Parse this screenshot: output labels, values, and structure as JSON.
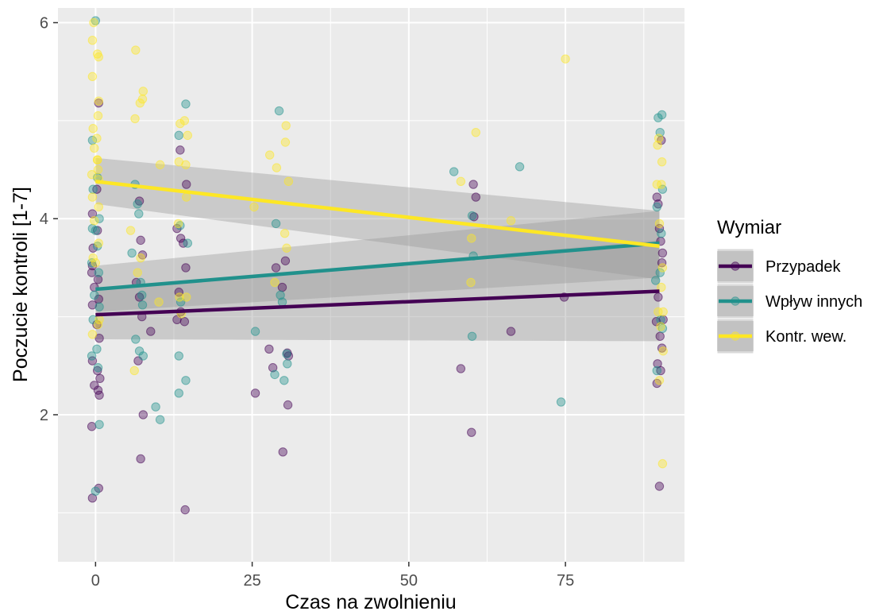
{
  "chart_data": {
    "type": "scatter",
    "xlabel": "Czas na zwolnieniu",
    "ylabel": "Poczucie kontroli [1-7]",
    "xlim": [
      -6,
      94
    ],
    "ylim": [
      0.5,
      6.15
    ],
    "x_ticks": [
      0,
      25,
      50,
      75
    ],
    "x_tick_labels": [
      "0",
      "25",
      "50",
      "75"
    ],
    "y_ticks": [
      2,
      4,
      6
    ],
    "y_tick_labels": [
      "2",
      "4",
      "6"
    ],
    "grid": true,
    "background": "#ebebeb",
    "legend": {
      "title": "Wymiar",
      "position": "right"
    },
    "series": [
      {
        "name": "Przypadek",
        "color": "#440154",
        "trend": {
          "x": [
            0,
            90
          ],
          "y": [
            3.02,
            3.26
          ]
        },
        "ci_lower": [
          2.77,
          2.75
        ],
        "ci_upper": [
          3.28,
          3.78
        ],
        "points": [
          [
            -0.5,
            4.05
          ],
          [
            0.3,
            3.88
          ],
          [
            -0.6,
            3.45
          ],
          [
            0.4,
            3.38
          ],
          [
            -0.2,
            3.3
          ],
          [
            0.5,
            3.18
          ],
          [
            -0.5,
            3.12
          ],
          [
            0.2,
            2.92
          ],
          [
            0.6,
            2.78
          ],
          [
            -0.5,
            2.55
          ],
          [
            0.3,
            2.45
          ],
          [
            -0.2,
            2.3
          ],
          [
            0.4,
            2.25
          ],
          [
            -0.6,
            1.88
          ],
          [
            0.2,
            4.3
          ],
          [
            -0.4,
            3.7
          ],
          [
            0.7,
            2.37
          ],
          [
            0.6,
            2.2
          ],
          [
            0.5,
            1.25
          ],
          [
            -0.5,
            1.15
          ],
          [
            0.5,
            5.18
          ],
          [
            -0.5,
            3.52
          ],
          [
            6.5,
            3.35
          ],
          [
            7.0,
            3.2
          ],
          [
            7.5,
            3.63
          ],
          [
            7.2,
            3.78
          ],
          [
            7.0,
            4.18
          ],
          [
            7.4,
            3.0
          ],
          [
            6.8,
            2.55
          ],
          [
            7.6,
            2.0
          ],
          [
            7.2,
            1.55
          ],
          [
            8.8,
            2.85
          ],
          [
            13.0,
            3.9
          ],
          [
            13.6,
            3.8
          ],
          [
            14.0,
            3.75
          ],
          [
            14.4,
            3.5
          ],
          [
            13.3,
            3.25
          ],
          [
            13.6,
            3.05
          ],
          [
            13.0,
            2.97
          ],
          [
            14.2,
            2.95
          ],
          [
            14.5,
            4.35
          ],
          [
            14.3,
            1.03
          ],
          [
            13.5,
            4.7
          ],
          [
            25.5,
            2.22
          ],
          [
            27.7,
            2.67
          ],
          [
            28.3,
            2.48
          ],
          [
            28.8,
            3.5
          ],
          [
            29.8,
            3.3
          ],
          [
            30.3,
            3.57
          ],
          [
            30.6,
            2.63
          ],
          [
            30.7,
            2.1
          ],
          [
            29.9,
            1.62
          ],
          [
            30.8,
            2.6
          ],
          [
            58.3,
            2.47
          ],
          [
            60.0,
            1.82
          ],
          [
            60.3,
            4.35
          ],
          [
            60.4,
            4.02
          ],
          [
            60.7,
            4.22
          ],
          [
            66.3,
            2.85
          ],
          [
            74.8,
            3.2
          ],
          [
            89.6,
            4.22
          ],
          [
            89.8,
            4.15
          ],
          [
            90.0,
            3.9
          ],
          [
            90.2,
            3.77
          ],
          [
            90.5,
            3.65
          ],
          [
            89.8,
            3.2
          ],
          [
            89.5,
            2.95
          ],
          [
            90.1,
            2.8
          ],
          [
            90.4,
            2.68
          ],
          [
            89.7,
            2.52
          ],
          [
            90.2,
            2.45
          ],
          [
            89.6,
            2.32
          ],
          [
            90.3,
            4.8
          ],
          [
            90.4,
            3.55
          ],
          [
            90.0,
            1.27
          ],
          [
            90.6,
            2.97
          ]
        ]
      },
      {
        "name": "Wpływ innych",
        "color": "#21918c",
        "trend": {
          "x": [
            0,
            90
          ],
          "y": [
            3.28,
            3.75
          ]
        },
        "ci_lower": [
          3.05,
          3.4
        ],
        "ci_upper": [
          3.52,
          4.08
        ],
        "points": [
          [
            0.0,
            6.02
          ],
          [
            -0.5,
            4.8
          ],
          [
            0.3,
            4.42
          ],
          [
            -0.4,
            4.3
          ],
          [
            0.6,
            4.0
          ],
          [
            -0.5,
            3.9
          ],
          [
            0.3,
            3.72
          ],
          [
            -0.6,
            3.55
          ],
          [
            0.5,
            3.45
          ],
          [
            -0.2,
            3.22
          ],
          [
            0.6,
            3.1
          ],
          [
            -0.4,
            2.97
          ],
          [
            0.2,
            2.67
          ],
          [
            -0.6,
            2.6
          ],
          [
            0.4,
            2.48
          ],
          [
            0.6,
            1.9
          ],
          [
            0.0,
            1.22
          ],
          [
            0.0,
            3.88
          ],
          [
            5.8,
            3.65
          ],
          [
            6.3,
            4.35
          ],
          [
            6.7,
            4.15
          ],
          [
            6.9,
            4.05
          ],
          [
            7.2,
            3.35
          ],
          [
            7.4,
            3.22
          ],
          [
            7.5,
            3.12
          ],
          [
            6.4,
            2.77
          ],
          [
            7.0,
            2.65
          ],
          [
            7.6,
            2.6
          ],
          [
            9.6,
            2.08
          ],
          [
            10.3,
            1.95
          ],
          [
            13.3,
            4.85
          ],
          [
            14.4,
            5.17
          ],
          [
            13.5,
            3.93
          ],
          [
            14.7,
            3.75
          ],
          [
            13.6,
            3.15
          ],
          [
            13.3,
            2.6
          ],
          [
            13.3,
            2.22
          ],
          [
            14.4,
            2.35
          ],
          [
            25.5,
            2.85
          ],
          [
            29.3,
            5.1
          ],
          [
            28.8,
            3.95
          ],
          [
            29.5,
            3.22
          ],
          [
            30.6,
            2.52
          ],
          [
            30.1,
            2.35
          ],
          [
            28.6,
            2.41
          ],
          [
            29.8,
            3.15
          ],
          [
            30.5,
            2.62
          ],
          [
            57.2,
            4.48
          ],
          [
            60.1,
            4.03
          ],
          [
            60.3,
            3.62
          ],
          [
            60.1,
            2.8
          ],
          [
            67.7,
            4.53
          ],
          [
            74.3,
            2.13
          ],
          [
            89.8,
            5.03
          ],
          [
            90.4,
            5.06
          ],
          [
            90.1,
            4.88
          ],
          [
            89.6,
            4.12
          ],
          [
            90.3,
            3.85
          ],
          [
            90.1,
            3.45
          ],
          [
            89.4,
            3.37
          ],
          [
            90.5,
            2.88
          ],
          [
            89.6,
            2.45
          ],
          [
            90.2,
            2.97
          ],
          [
            90.5,
            4.3
          ]
        ]
      },
      {
        "name": "Kontr. wew.",
        "color": "#fde725",
        "trend": {
          "x": [
            0,
            90
          ],
          "y": [
            4.38,
            3.72
          ]
        },
        "ci_lower": [
          4.15,
          3.38
        ],
        "ci_upper": [
          4.62,
          4.08
        ],
        "points": [
          [
            -0.3,
            6.0
          ],
          [
            -0.5,
            5.82
          ],
          [
            0.3,
            5.68
          ],
          [
            0.5,
            5.65
          ],
          [
            -0.5,
            5.45
          ],
          [
            0.5,
            5.2
          ],
          [
            0.4,
            5.05
          ],
          [
            -0.4,
            4.92
          ],
          [
            0.2,
            4.82
          ],
          [
            -0.2,
            4.72
          ],
          [
            0.3,
            4.6
          ],
          [
            0.4,
            4.5
          ],
          [
            -0.6,
            4.45
          ],
          [
            0.5,
            4.4
          ],
          [
            -0.5,
            4.22
          ],
          [
            0.5,
            4.12
          ],
          [
            -0.2,
            3.98
          ],
          [
            0.5,
            3.75
          ],
          [
            -0.4,
            3.6
          ],
          [
            0.0,
            3.55
          ],
          [
            0.6,
            2.97
          ],
          [
            -0.5,
            2.82
          ],
          [
            0.4,
            2.92
          ],
          [
            0.3,
            4.6
          ],
          [
            6.4,
            5.72
          ],
          [
            6.3,
            5.02
          ],
          [
            7.1,
            5.18
          ],
          [
            7.6,
            5.3
          ],
          [
            7.5,
            5.22
          ],
          [
            6.2,
            2.45
          ],
          [
            6.7,
            3.45
          ],
          [
            7.2,
            3.6
          ],
          [
            5.6,
            3.88
          ],
          [
            10.3,
            4.55
          ],
          [
            10.1,
            3.15
          ],
          [
            13.5,
            4.97
          ],
          [
            14.2,
            5.0
          ],
          [
            14.7,
            4.85
          ],
          [
            13.3,
            4.58
          ],
          [
            14.4,
            4.55
          ],
          [
            13.2,
            3.95
          ],
          [
            14.5,
            4.22
          ],
          [
            13.7,
            3.03
          ],
          [
            14.5,
            3.2
          ],
          [
            13.4,
            3.2
          ],
          [
            25.3,
            4.12
          ],
          [
            27.8,
            4.65
          ],
          [
            28.9,
            4.52
          ],
          [
            30.2,
            3.85
          ],
          [
            30.4,
            4.95
          ],
          [
            30.3,
            4.78
          ],
          [
            30.8,
            4.38
          ],
          [
            30.5,
            3.7
          ],
          [
            28.6,
            3.35
          ],
          [
            58.3,
            4.38
          ],
          [
            60.0,
            3.8
          ],
          [
            59.9,
            3.35
          ],
          [
            60.7,
            4.88
          ],
          [
            66.3,
            3.98
          ],
          [
            75.0,
            5.63
          ],
          [
            89.7,
            4.75
          ],
          [
            90.4,
            4.58
          ],
          [
            90.3,
            4.35
          ],
          [
            89.6,
            4.35
          ],
          [
            90.0,
            3.95
          ],
          [
            90.5,
            3.5
          ],
          [
            89.8,
            3.05
          ],
          [
            90.2,
            2.9
          ],
          [
            90.6,
            2.65
          ],
          [
            90.0,
            2.35
          ],
          [
            90.5,
            1.5
          ],
          [
            89.9,
            4.82
          ],
          [
            90.6,
            3.05
          ],
          [
            90.3,
            3.3
          ]
        ]
      }
    ]
  }
}
